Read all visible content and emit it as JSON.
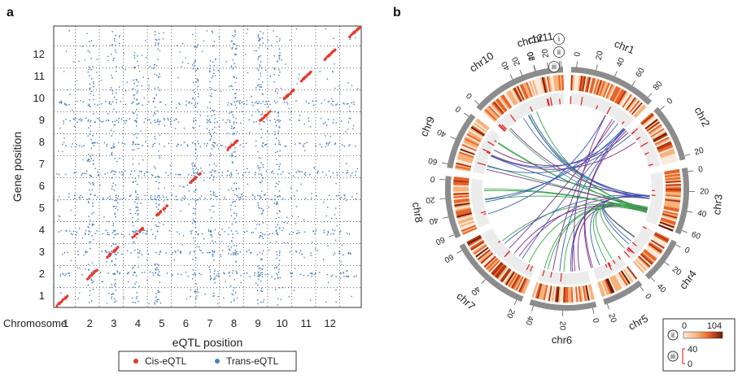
{
  "panels": {
    "a": "a",
    "b": "b"
  },
  "chart_data": [
    {
      "type": "scatter",
      "panel": "a",
      "xlabel": "eQTL position",
      "ylabel": "Gene position",
      "x_prefix_label": "Chromosome",
      "x_ticks": [
        "1",
        "2",
        "3",
        "4",
        "5",
        "6",
        "7",
        "8",
        "9",
        "10",
        "11",
        "12"
      ],
      "y_ticks": [
        "1",
        "2",
        "3",
        "4",
        "5",
        "6",
        "7",
        "8",
        "9",
        "10",
        "11",
        "12"
      ],
      "xlim": [
        0,
        12.8
      ],
      "ylim": [
        0,
        12.8
      ],
      "grid": "dotted at chromosome boundaries",
      "legend_position": "bottom",
      "colors": {
        "cis": "#e8392b",
        "trans": "#4a7fc1",
        "grid": "#444444"
      },
      "series": [
        {
          "name": "Cis-eQTL",
          "pattern": "diagonal clusters, one per chromosome",
          "clusters": [
            {
              "x": 0.35,
              "y": 0.3
            },
            {
              "x": 1.6,
              "y": 1.5
            },
            {
              "x": 2.45,
              "y": 2.5
            },
            {
              "x": 3.5,
              "y": 3.4
            },
            {
              "x": 4.5,
              "y": 4.4
            },
            {
              "x": 5.9,
              "y": 5.9
            },
            {
              "x": 7.45,
              "y": 7.4
            },
            {
              "x": 8.8,
              "y": 8.7
            },
            {
              "x": 9.8,
              "y": 9.7
            },
            {
              "x": 10.5,
              "y": 10.5
            },
            {
              "x": 11.5,
              "y": 11.5
            },
            {
              "x": 12.5,
              "y": 12.5
            }
          ]
        },
        {
          "name": "Trans-eQTL",
          "pattern": "dense vertical and horizontal bands at eQTL hotspots",
          "hotspot_x": [
            1.55,
            2.5,
            3.4,
            4.3,
            5.9,
            6.6,
            7.5,
            8.6,
            9.3
          ],
          "hotspot_y": [
            1.5,
            2.5,
            3.4,
            5.0,
            6.1,
            7.4,
            8.5,
            9.3
          ]
        }
      ]
    },
    {
      "type": "circos",
      "panel": "b",
      "chromosomes": [
        {
          "name": "chr1",
          "ticks": [
            "0",
            "20",
            "40",
            "60",
            "80"
          ]
        },
        {
          "name": "chr2",
          "ticks": [
            "0",
            "20"
          ]
        },
        {
          "name": "chr3",
          "ticks": [
            "0",
            "20",
            "40",
            "60"
          ]
        },
        {
          "name": "chr4",
          "ticks": [
            "0",
            "20",
            "40"
          ]
        },
        {
          "name": "chr5",
          "ticks": [
            "0",
            "20"
          ]
        },
        {
          "name": "chr6",
          "ticks": [
            "0",
            "20",
            "40"
          ]
        },
        {
          "name": "chr7",
          "ticks": [
            "20",
            "40",
            "60"
          ]
        },
        {
          "name": "chr8",
          "ticks": [
            "60",
            "40",
            "20",
            "0"
          ]
        },
        {
          "name": "chr9",
          "ticks": [
            "60",
            "40",
            "0"
          ]
        },
        {
          "name": "chr10",
          "ticks": [
            "0",
            "20"
          ]
        },
        {
          "name": "chr11",
          "ticks": [
            "40",
            "20",
            "0"
          ]
        },
        {
          "name": "chr12",
          "ticks": [
            "40",
            "20",
            "60"
          ]
        }
      ],
      "tracks": [
        "i",
        "ii",
        "iii"
      ],
      "heatmap_scale": {
        "label": "ii",
        "min": "0",
        "max": "104"
      },
      "bar_scale": {
        "label": "iii",
        "min": "0",
        "max": "40"
      },
      "link_colors": [
        "#3aa64b",
        "#7b2f8f",
        "#3c5eb3"
      ],
      "heat_colors": [
        "#fde9d9",
        "#f7b27a",
        "#e8632a",
        "#b3350f",
        "#6e1a0a"
      ]
    }
  ]
}
